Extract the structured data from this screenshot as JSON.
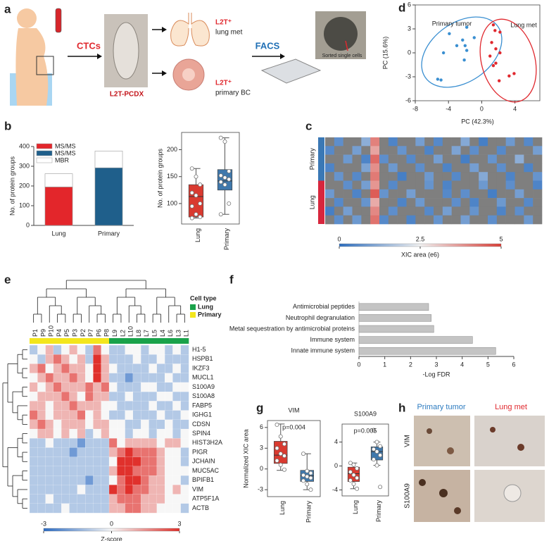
{
  "panel_labels": [
    "a",
    "b",
    "c",
    "d",
    "e",
    "f",
    "g",
    "h"
  ],
  "panel_a": {
    "ctcs": "CTCs",
    "pdx": "L2T-PCDX",
    "lung_tag": "L2T⁺",
    "lung_text": "lung met",
    "primary_tag": "L2T⁺",
    "primary_text": "primary BC",
    "facs": "FACS",
    "sorted": "Sorted single cells"
  },
  "panel_h": {
    "columns": [
      "Primary tumor",
      "Lung met"
    ],
    "rows": [
      "VIM",
      "S100A9"
    ]
  },
  "chart_data": [
    {
      "type": "bar",
      "stacked": true,
      "categories": [
        "Lung",
        "Primary"
      ],
      "series": [
        {
          "name": "MS/MS",
          "color": "#e3262b",
          "values": [
            195,
            null
          ]
        },
        {
          "name": "MS/MS",
          "color": "#1f5f8b",
          "values": [
            null,
            292
          ]
        },
        {
          "name": "MBR",
          "color": "#ffffff",
          "values": [
            67,
            85
          ]
        }
      ],
      "ylabel": "No. of protein groups",
      "ylim": [
        0,
        400
      ],
      "yticks": [
        0,
        100,
        200,
        300,
        400
      ]
    },
    {
      "type": "box",
      "ylabel": "No. of protein groups",
      "ylim": [
        62,
        232
      ],
      "yticks": [
        100,
        150,
        200
      ],
      "boxes": [
        {
          "name": "Lung",
          "color": "#d93a30",
          "whisker_low": 73,
          "q1": 75,
          "median": 113,
          "q3": 135,
          "whisker_high": 165,
          "points": [
            165,
            150,
            135,
            120,
            115,
            100,
            95,
            80,
            75,
            73
          ]
        },
        {
          "name": "Primary",
          "color": "#3f78ac",
          "whisker_low": 80,
          "q1": 125,
          "median": 142,
          "q3": 163,
          "whisker_high": 222,
          "points": [
            222,
            215,
            160,
            152,
            148,
            145,
            140,
            135,
            100,
            80
          ]
        }
      ]
    },
    {
      "type": "heatmap",
      "zlim": [
        0,
        5
      ],
      "zticks": [
        0,
        2.5,
        5
      ],
      "colors": [
        "#2f6fbf",
        "#f2f2f2",
        "#d9413a"
      ],
      "missing_color": "#7f7f7f",
      "colorbar_label": "XIC area (e6)",
      "groups": [
        {
          "name": "Primary",
          "color": "#3a78b5",
          "values": [
            [
              null,
              0.6,
              null,
              null,
              1.2,
              4.1,
              null,
              0.4,
              null,
              null,
              0.9,
              null,
              0.5,
              null,
              null,
              1.1,
              null,
              0.3,
              null,
              null,
              0.8,
              null,
              0.5,
              null
            ],
            [
              0.5,
              null,
              null,
              0.9,
              null,
              3.6,
              null,
              null,
              0.7,
              null,
              null,
              0.4,
              null,
              null,
              1.0,
              null,
              0.6,
              null,
              null,
              0.5,
              null,
              null,
              null,
              0.9
            ],
            [
              null,
              null,
              0.8,
              null,
              0.4,
              4.4,
              0.6,
              null,
              null,
              0.5,
              null,
              null,
              0.9,
              null,
              null,
              0.3,
              null,
              null,
              0.7,
              null,
              null,
              1.2,
              null,
              null
            ],
            [
              0.4,
              null,
              null,
              null,
              1.0,
              3.9,
              null,
              0.8,
              null,
              null,
              0.6,
              null,
              null,
              0.4,
              null,
              null,
              0.9,
              null,
              null,
              0.6,
              null,
              null,
              0.4,
              null
            ],
            [
              null,
              0.7,
              null,
              0.5,
              null,
              4.2,
              null,
              null,
              0.3,
              null,
              null,
              0.8,
              null,
              null,
              0.5,
              null,
              null,
              1.1,
              null,
              null,
              0.4,
              null,
              null,
              0.7
            ]
          ]
        },
        {
          "name": "Lung",
          "color": "#d7263d",
          "values": [
            [
              null,
              null,
              0.6,
              null,
              0.9,
              3.8,
              null,
              0.5,
              null,
              null,
              null,
              0.7,
              null,
              0.4,
              null,
              null,
              null,
              0.8,
              null,
              null,
              0.6,
              null,
              null,
              0.4
            ],
            [
              0.8,
              null,
              null,
              0.4,
              null,
              4.6,
              0.7,
              null,
              null,
              0.9,
              null,
              null,
              null,
              0.5,
              null,
              0.6,
              null,
              null,
              0.3,
              null,
              null,
              0.9,
              null,
              null
            ],
            [
              null,
              0.5,
              null,
              null,
              0.7,
              3.5,
              null,
              null,
              0.4,
              null,
              0.8,
              null,
              null,
              null,
              0.6,
              null,
              0.4,
              null,
              null,
              0.8,
              null,
              null,
              0.5,
              null
            ],
            [
              0.3,
              null,
              0.9,
              null,
              null,
              4.0,
              null,
              0.6,
              null,
              null,
              null,
              0.5,
              null,
              0.9,
              null,
              null,
              0.7,
              null,
              null,
              0.4,
              null,
              0.6,
              null,
              null
            ],
            [
              null,
              0.6,
              null,
              0.8,
              null,
              4.3,
              0.5,
              null,
              null,
              0.4,
              null,
              null,
              0.7,
              null,
              null,
              0.9,
              null,
              null,
              0.6,
              null,
              null,
              null,
              0.8,
              null
            ]
          ]
        }
      ]
    },
    {
      "type": "scatter",
      "xlabel": "PC (42.3%)",
      "ylabel": "PC (15.6%)",
      "xlim": [
        -8,
        7
      ],
      "xticks": [
        -8,
        -4,
        0,
        4
      ],
      "ylim": [
        -6,
        6
      ],
      "yticks": [
        -6,
        -3,
        0,
        3,
        6
      ],
      "series": [
        {
          "name": "Primary tumor",
          "color": "#3a8fd1",
          "x": [
            -3.9,
            -1.8,
            -0.9,
            -2.3,
            -4.6,
            -2.0,
            -3.0,
            -1.8,
            -2.1,
            -5.3,
            -4.9
          ],
          "values": [
            2.4,
            3.2,
            1.9,
            1.6,
            0,
            0.9,
            0.9,
            0.3,
            -0.9,
            -3.3,
            -3.4
          ]
        },
        {
          "name": "Lung met",
          "color": "#e0282e",
          "x": [
            1.4,
            1.6,
            2.2,
            1.2,
            1.7,
            2.2,
            1.0,
            1.7,
            1.4,
            3.3,
            3.9,
            2.1
          ],
          "values": [
            3.5,
            2.8,
            2.6,
            1.3,
            0.5,
            0,
            -0.4,
            -1.3,
            -1.6,
            -2.9,
            -2.6,
            -3.5
          ]
        }
      ]
    },
    {
      "type": "heatmap",
      "zlim": [
        -3,
        3
      ],
      "zticks": [
        -3,
        0,
        3
      ],
      "colors": [
        "#2c6cc4",
        "#f7f7f7",
        "#e0312c"
      ],
      "colorbar_label": "Z-score",
      "legend_title": "Cell type",
      "column_groups": [
        {
          "name": "Primary",
          "color": "#f3e61c",
          "columns": [
            "P1",
            "P9",
            "P10",
            "P4",
            "P5",
            "P3",
            "P2",
            "P7",
            "P6",
            "P8"
          ]
        },
        {
          "name": "Lung",
          "color": "#19a24a",
          "columns": [
            "L9",
            "L2",
            "L10",
            "L8",
            "L7",
            "L5",
            "L4",
            "L6",
            "L3",
            "L1"
          ]
        }
      ],
      "rows": [
        "H1-5",
        "HSPB1",
        "IKZF3",
        "MUCL1",
        "S100A9",
        "S100A8",
        "FABP5",
        "IGHG1",
        "CDSN",
        "SPIN4",
        "HIST3H2A",
        "PIGR",
        "JCHAIN",
        "MUC5AC",
        "BPIFB1",
        "VIM",
        "ATP5F1A",
        "ACTB"
      ],
      "values": [
        [
          -1,
          0,
          1,
          -1,
          0,
          1,
          0,
          -1,
          2,
          0,
          -1,
          -1,
          0,
          0,
          -1,
          0,
          0,
          -1,
          0,
          -1
        ],
        [
          0,
          -1,
          1,
          2,
          1,
          0,
          1,
          -1,
          3,
          1,
          -1,
          -1,
          -1,
          0,
          -1,
          -1,
          0,
          -1,
          -1,
          -1
        ],
        [
          1,
          2,
          0,
          1,
          2,
          1,
          1,
          0,
          3,
          1,
          0,
          -1,
          -1,
          -1,
          -1,
          0,
          -1,
          -1,
          0,
          -1
        ],
        [
          0,
          1,
          2,
          1,
          1,
          2,
          1,
          0,
          3,
          1,
          -1,
          -1,
          -2,
          -1,
          -1,
          -1,
          -1,
          0,
          -1,
          -1
        ],
        [
          1,
          0,
          1,
          2,
          1,
          1,
          1,
          2,
          1,
          2,
          0,
          -1,
          -1,
          -1,
          0,
          0,
          -1,
          -1,
          0,
          0
        ],
        [
          0,
          1,
          1,
          1,
          2,
          1,
          0,
          2,
          1,
          1,
          -1,
          -1,
          0,
          -1,
          -1,
          -1,
          0,
          0,
          -1,
          -1
        ],
        [
          1,
          1,
          0,
          1,
          1,
          2,
          1,
          1,
          1,
          0,
          0,
          -1,
          -1,
          -1,
          -1,
          0,
          -1,
          -1,
          0,
          -1
        ],
        [
          2,
          1,
          0,
          1,
          1,
          1,
          2,
          0,
          1,
          0,
          -1,
          -1,
          0,
          -1,
          -1,
          -1,
          0,
          -1,
          -1,
          0
        ],
        [
          1,
          2,
          1,
          0,
          1,
          1,
          1,
          0,
          1,
          1,
          0,
          0,
          -1,
          -1,
          0,
          -1,
          -1,
          0,
          -1,
          -1
        ],
        [
          0,
          1,
          1,
          0,
          1,
          0,
          1,
          -1,
          0,
          1,
          0,
          0,
          -1,
          0,
          0,
          -1,
          0,
          0,
          -1,
          0
        ],
        [
          -1,
          -1,
          0,
          -1,
          -1,
          -1,
          -2,
          -1,
          -1,
          -1,
          2,
          0,
          1,
          1,
          1,
          1,
          0,
          1,
          1,
          0
        ],
        [
          -1,
          -1,
          -1,
          -1,
          -1,
          -2,
          -1,
          -1,
          -1,
          -1,
          1,
          2,
          3,
          2,
          2,
          2,
          1,
          0,
          0,
          -1
        ],
        [
          -1,
          -1,
          -1,
          -1,
          -1,
          -1,
          -1,
          -1,
          -1,
          -1,
          0,
          3,
          3,
          3,
          2,
          2,
          1,
          0,
          0,
          -1
        ],
        [
          -1,
          -1,
          -1,
          -1,
          -1,
          -1,
          -1,
          -1,
          -1,
          -1,
          1,
          3,
          3,
          2,
          2,
          2,
          1,
          0,
          0,
          0
        ],
        [
          -1,
          -1,
          -1,
          -1,
          -1,
          -1,
          -1,
          -2,
          -1,
          -1,
          0,
          2,
          3,
          3,
          2,
          1,
          1,
          0,
          0,
          -1
        ],
        [
          -1,
          -1,
          -1,
          -1,
          -1,
          -1,
          0,
          -1,
          -1,
          -1,
          3,
          2,
          3,
          2,
          2,
          1,
          1,
          0,
          1,
          0
        ],
        [
          -1,
          -1,
          0,
          -1,
          -1,
          -1,
          -1,
          -1,
          -1,
          -1,
          1,
          2,
          2,
          2,
          1,
          1,
          1,
          0,
          0,
          0
        ],
        [
          -1,
          -1,
          -1,
          -1,
          0,
          -1,
          -1,
          -1,
          -1,
          -1,
          1,
          1,
          2,
          2,
          1,
          1,
          0,
          0,
          0,
          -1
        ]
      ]
    },
    {
      "type": "bar",
      "orientation": "horizontal",
      "color": "#c4c4c4",
      "categories": [
        "Antimicrobial peptides",
        "Neutrophil degranulation",
        "Metal sequestration by antimicrobial proteins",
        "Immune system",
        "Innate immune system"
      ],
      "values": [
        2.7,
        2.8,
        2.9,
        4.4,
        5.3
      ],
      "xlabel": "-Log FDR",
      "xlim": [
        0,
        6
      ],
      "xticks": [
        0,
        1,
        2,
        3,
        4,
        5,
        6
      ]
    },
    {
      "type": "box",
      "title": "VIM",
      "annotation": "p=0.004",
      "ylabel": "Normalized XIC area",
      "colored_labels": true,
      "ylim": [
        -4,
        7
      ],
      "yticks": [
        -3,
        0,
        3,
        6
      ],
      "boxes": [
        {
          "name": "Lung",
          "color": "#d93a30",
          "whisker_low": -0.2,
          "q1": 0.8,
          "median": 2.0,
          "q3": 4.0,
          "whisker_high": 6.5,
          "points": [
            6.4,
            4.7,
            3.6,
            3.0,
            2.2,
            1.9,
            1.2,
            0.6,
            -0.1
          ]
        },
        {
          "name": "Primary",
          "color": "#3f78ac",
          "whisker_low": -3.0,
          "q1": -1.8,
          "median": -1.0,
          "q3": -0.2,
          "whisker_high": 2.2,
          "points": [
            2.2,
            -0.3,
            -0.6,
            -0.9,
            -1.1,
            -1.3,
            -1.7,
            -2.2,
            -3.0
          ]
        }
      ]
    },
    {
      "type": "box",
      "title": "S100A9",
      "annotation": "p=0.005",
      "colored_labels": true,
      "ylim": [
        -5,
        7
      ],
      "yticks": [
        -4,
        0,
        4
      ],
      "boxes": [
        {
          "name": "Lung",
          "color": "#d93a30",
          "whisker_low": -3.8,
          "q1": -2.6,
          "median": -1.3,
          "q3": -0.2,
          "whisker_high": 0.5,
          "points": [
            0.5,
            0.2,
            -0.4,
            -1.0,
            -1.5,
            -2.0,
            -2.4,
            -3.0,
            -3.8
          ]
        },
        {
          "name": "Primary",
          "color": "#3f78ac",
          "whisker_low": 0.1,
          "q1": 1.0,
          "median": 2.4,
          "q3": 3.2,
          "whisker_high": 4.0,
          "points": [
            6.0,
            4.0,
            3.3,
            2.8,
            2.4,
            1.8,
            1.1,
            0.1,
            -3.5
          ]
        }
      ]
    }
  ]
}
